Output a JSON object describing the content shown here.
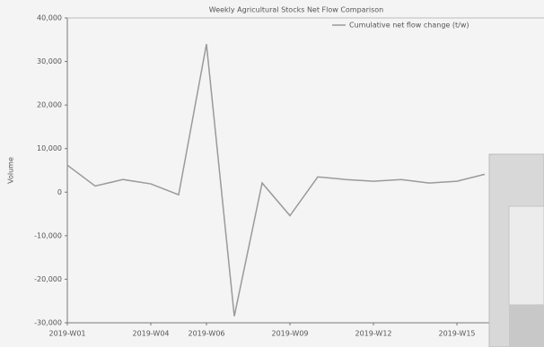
{
  "chart_data": {
    "type": "line",
    "title": "Weekly Agricultural Stocks Net Flow Comparison",
    "y_label": "Volume",
    "categories": [
      "2019-W01",
      null,
      null,
      "2019-W04",
      null,
      "2019-W06",
      null,
      null,
      "2019-W09",
      null,
      null,
      "2019-W12",
      null,
      null,
      "2019-W15",
      null
    ],
    "series": [
      {
        "name": "Cumulative net flow change (t/w)",
        "color": "#9a9a9a",
        "values": [
          6200,
          1400,
          2900,
          1900,
          -600,
          34000,
          -28500,
          2100,
          -5400,
          3500,
          2900,
          2500,
          2900,
          2100,
          2500,
          4100
        ]
      }
    ],
    "ylim": [
      -30000,
      40000
    ],
    "yticks": [
      {
        "value": -30000,
        "label": "-30,000"
      },
      {
        "value": -20000,
        "label": "-20,000"
      },
      {
        "value": -10000,
        "label": "-10,000"
      },
      0,
      {
        "value": 10000,
        "label": "10,000"
      },
      {
        "value": 20000,
        "label": "20,000"
      },
      {
        "value": 30000,
        "label": "30,000"
      },
      {
        "value": 40000,
        "label": "40,000"
      }
    ],
    "grid": false
  }
}
